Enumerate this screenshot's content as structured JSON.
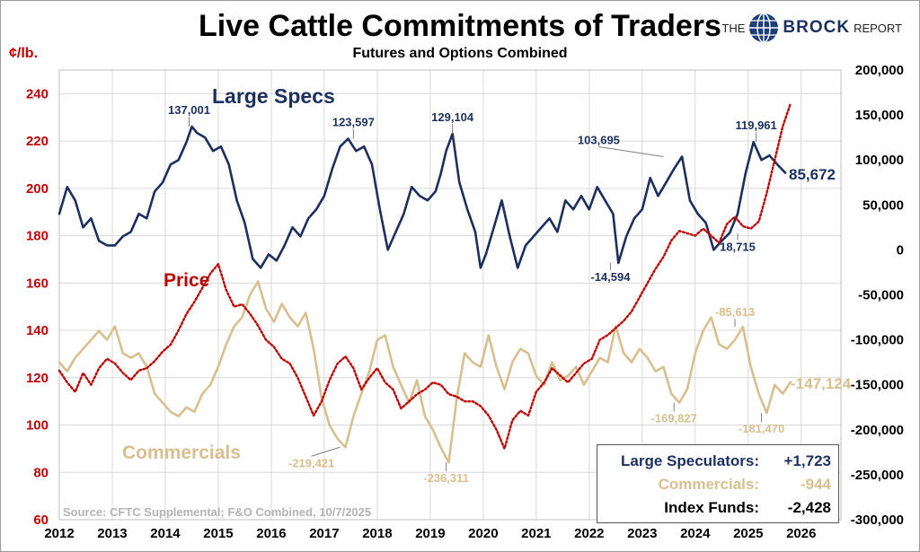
{
  "title": "Live Cattle Commitments of Traders",
  "subtitle": "Futures and Options Combined",
  "logo": {
    "the": "THE",
    "brock": "BROCK",
    "report": "REPORT"
  },
  "source": "Source: CFTC Supplemental;  F&O Combined, 10/7/2025",
  "colors": {
    "large_specs": "#1c2f5e",
    "commercials": "#d8bf8e",
    "price": "#c00000",
    "grid": "#d9d9d9"
  },
  "chart_data": {
    "type": "line",
    "title": "Live Cattle Commitments of Traders",
    "subtitle": "Futures and Options Combined",
    "x_range": [
      2012,
      2026.75
    ],
    "x_ticks": [
      "2012",
      "2013",
      "2014",
      "2015",
      "2016",
      "2017",
      "2018",
      "2019",
      "2020",
      "2021",
      "2022",
      "2023",
      "2024",
      "2025",
      "2026"
    ],
    "left_axis": {
      "label": "¢/lb.",
      "min": 60,
      "max": 250,
      "ticks": [
        60,
        80,
        100,
        120,
        140,
        160,
        180,
        200,
        220,
        240
      ]
    },
    "right_axis": {
      "min": -300000,
      "max": 200000,
      "ticks": [
        -300000,
        -250000,
        -200000,
        -150000,
        -100000,
        -50000,
        0,
        50000,
        100000,
        150000,
        200000
      ],
      "tick_labels": [
        "-300,000",
        "-250,000",
        "-200,000",
        "-150,000",
        "-100,000",
        "-50,000",
        "0",
        "50,000",
        "100,000",
        "150,000",
        "200,000"
      ]
    },
    "grid": true,
    "series": [
      {
        "name": "Large Specs",
        "axis": "right",
        "color": "#1c2f5e",
        "style": "solid",
        "label_value": "85,672",
        "x": [
          2012.0,
          2012.15,
          2012.3,
          2012.45,
          2012.6,
          2012.75,
          2012.9,
          2013.05,
          2013.2,
          2013.35,
          2013.5,
          2013.65,
          2013.8,
          2013.95,
          2014.1,
          2014.25,
          2014.4,
          2014.5,
          2014.6,
          2014.75,
          2014.9,
          2015.05,
          2015.2,
          2015.35,
          2015.5,
          2015.65,
          2015.8,
          2015.95,
          2016.1,
          2016.25,
          2016.4,
          2016.55,
          2016.7,
          2016.85,
          2017.0,
          2017.15,
          2017.3,
          2017.45,
          2017.6,
          2017.75,
          2017.9,
          2018.05,
          2018.2,
          2018.35,
          2018.5,
          2018.65,
          2018.8,
          2018.95,
          2019.1,
          2019.2,
          2019.3,
          2019.42,
          2019.55,
          2019.7,
          2019.85,
          2019.95,
          2020.05,
          2020.2,
          2020.35,
          2020.5,
          2020.65,
          2020.8,
          2020.95,
          2021.1,
          2021.25,
          2021.4,
          2021.55,
          2021.7,
          2021.85,
          2022.0,
          2022.15,
          2022.3,
          2022.45,
          2022.55,
          2022.7,
          2022.85,
          2023.0,
          2023.15,
          2023.3,
          2023.45,
          2023.6,
          2023.75,
          2023.9,
          2024.05,
          2024.2,
          2024.35,
          2024.5,
          2024.65,
          2024.8,
          2024.95,
          2025.1,
          2025.25,
          2025.4,
          2025.55,
          2025.7
        ],
        "values": [
          40000,
          70000,
          55000,
          25000,
          35000,
          10000,
          5000,
          5000,
          15000,
          20000,
          40000,
          35000,
          65000,
          75000,
          95000,
          100000,
          120000,
          137001,
          130000,
          125000,
          110000,
          115000,
          95000,
          55000,
          30000,
          -10000,
          -20000,
          -5000,
          -12000,
          5000,
          25000,
          15000,
          35000,
          45000,
          60000,
          90000,
          115000,
          123597,
          110000,
          115000,
          95000,
          45000,
          0,
          20000,
          40000,
          70000,
          60000,
          55000,
          65000,
          85000,
          110000,
          129104,
          75000,
          45000,
          20000,
          -20000,
          -5000,
          25000,
          55000,
          15000,
          -20000,
          5000,
          15000,
          25000,
          35000,
          20000,
          55000,
          45000,
          60000,
          45000,
          70000,
          55000,
          40000,
          -14594,
          15000,
          35000,
          45000,
          80000,
          60000,
          75000,
          90000,
          103695,
          55000,
          40000,
          30000,
          0,
          10000,
          18715,
          40000,
          85000,
          119961,
          100000,
          105000,
          95000,
          85672
        ]
      },
      {
        "name": "Commercials",
        "axis": "right",
        "color": "#d8bf8e",
        "style": "solid",
        "label_value": "-147,124",
        "x": [
          2012.0,
          2012.15,
          2012.3,
          2012.45,
          2012.6,
          2012.75,
          2012.9,
          2013.05,
          2013.2,
          2013.35,
          2013.5,
          2013.65,
          2013.8,
          2013.95,
          2014.1,
          2014.25,
          2014.4,
          2014.55,
          2014.7,
          2014.85,
          2015.0,
          2015.15,
          2015.3,
          2015.45,
          2015.6,
          2015.75,
          2015.9,
          2016.05,
          2016.2,
          2016.35,
          2016.5,
          2016.65,
          2016.8,
          2016.95,
          2017.1,
          2017.25,
          2017.4,
          2017.55,
          2017.7,
          2017.85,
          2018.0,
          2018.15,
          2018.3,
          2018.45,
          2018.6,
          2018.75,
          2018.9,
          2019.05,
          2019.2,
          2019.35,
          2019.5,
          2019.65,
          2019.8,
          2019.95,
          2020.1,
          2020.25,
          2020.4,
          2020.55,
          2020.7,
          2020.85,
          2021.0,
          2021.15,
          2021.3,
          2021.45,
          2021.6,
          2021.75,
          2021.9,
          2022.05,
          2022.2,
          2022.35,
          2022.5,
          2022.65,
          2022.8,
          2022.95,
          2023.1,
          2023.25,
          2023.4,
          2023.55,
          2023.7,
          2023.85,
          2024.0,
          2024.15,
          2024.3,
          2024.45,
          2024.6,
          2024.75,
          2024.9,
          2025.05,
          2025.2,
          2025.35,
          2025.5,
          2025.65,
          2025.8
        ],
        "values": [
          -125000,
          -135000,
          -120000,
          -110000,
          -100000,
          -90000,
          -100000,
          -85000,
          -115000,
          -120000,
          -115000,
          -130000,
          -160000,
          -170000,
          -180000,
          -185000,
          -175000,
          -180000,
          -160000,
          -150000,
          -130000,
          -105000,
          -85000,
          -75000,
          -50000,
          -35000,
          -65000,
          -80000,
          -60000,
          -75000,
          -85000,
          -70000,
          -110000,
          -165000,
          -195000,
          -210000,
          -219421,
          -185000,
          -160000,
          -135000,
          -100000,
          -95000,
          -130000,
          -150000,
          -170000,
          -145000,
          -185000,
          -200000,
          -220000,
          -236311,
          -165000,
          -115000,
          -125000,
          -130000,
          -95000,
          -130000,
          -155000,
          -125000,
          -110000,
          -115000,
          -140000,
          -150000,
          -125000,
          -145000,
          -140000,
          -130000,
          -150000,
          -135000,
          -120000,
          -125000,
          -85000,
          -115000,
          -125000,
          -110000,
          -120000,
          -135000,
          -130000,
          -160000,
          -169827,
          -155000,
          -115000,
          -90000,
          -75000,
          -105000,
          -110000,
          -100000,
          -85613,
          -130000,
          -160000,
          -181470,
          -150000,
          -160000,
          -147124
        ]
      },
      {
        "name": "Price",
        "axis": "left",
        "color": "#c00000",
        "style": "dotted",
        "x": [
          2012.0,
          2012.15,
          2012.3,
          2012.45,
          2012.6,
          2012.75,
          2012.9,
          2013.05,
          2013.2,
          2013.35,
          2013.5,
          2013.65,
          2013.8,
          2013.95,
          2014.1,
          2014.25,
          2014.4,
          2014.55,
          2014.7,
          2014.85,
          2015.0,
          2015.15,
          2015.3,
          2015.45,
          2015.6,
          2015.75,
          2015.9,
          2016.05,
          2016.2,
          2016.35,
          2016.5,
          2016.65,
          2016.8,
          2016.95,
          2017.1,
          2017.25,
          2017.4,
          2017.55,
          2017.7,
          2017.85,
          2018.0,
          2018.15,
          2018.3,
          2018.45,
          2018.6,
          2018.75,
          2018.9,
          2019.05,
          2019.2,
          2019.35,
          2019.5,
          2019.65,
          2019.8,
          2019.95,
          2020.1,
          2020.25,
          2020.4,
          2020.55,
          2020.7,
          2020.85,
          2021.0,
          2021.15,
          2021.3,
          2021.45,
          2021.6,
          2021.75,
          2021.9,
          2022.05,
          2022.2,
          2022.35,
          2022.5,
          2022.65,
          2022.8,
          2022.95,
          2023.1,
          2023.25,
          2023.4,
          2023.55,
          2023.7,
          2023.85,
          2024.0,
          2024.15,
          2024.3,
          2024.45,
          2024.6,
          2024.75,
          2024.9,
          2025.05,
          2025.2,
          2025.35,
          2025.5,
          2025.65,
          2025.8
        ],
        "values": [
          123,
          118,
          114,
          122,
          117,
          124,
          128,
          126,
          122,
          119,
          123,
          124,
          127,
          131,
          134,
          140,
          147,
          152,
          158,
          164,
          168,
          157,
          150,
          151,
          147,
          142,
          136,
          133,
          128,
          126,
          120,
          112,
          104,
          110,
          119,
          126,
          129,
          124,
          115,
          120,
          124,
          118,
          115,
          107,
          110,
          113,
          115,
          118,
          117,
          113,
          112,
          110,
          110,
          108,
          104,
          98,
          90,
          102,
          106,
          104,
          114,
          118,
          124,
          121,
          118,
          122,
          126,
          128,
          136,
          138,
          141,
          144,
          148,
          154,
          160,
          166,
          171,
          178,
          182,
          181,
          180,
          183,
          180,
          177,
          185,
          188,
          184,
          183,
          186,
          198,
          212,
          226,
          236
        ]
      }
    ],
    "annotations": [
      {
        "series": "Large Specs",
        "x": 2014.45,
        "value": 137001,
        "text": "137,001"
      },
      {
        "series": "Large Specs",
        "x": 2017.55,
        "value": 123597,
        "text": "123,597"
      },
      {
        "series": "Large Specs",
        "x": 2019.42,
        "value": 129104,
        "text": "129,104"
      },
      {
        "series": "Large Specs",
        "x": 2023.4,
        "value": 103695,
        "text": "103,695"
      },
      {
        "series": "Large Specs",
        "x": 2022.4,
        "value": -14594,
        "text": "-14,594"
      },
      {
        "series": "Large Specs",
        "x": 2025.15,
        "value": 119961,
        "text": "119,961"
      },
      {
        "series": "Large Specs",
        "x": 2024.8,
        "value": 18715,
        "text": "18,715"
      },
      {
        "series": "Commercials",
        "x": 2017.3,
        "value": -219421,
        "text": "-219,421"
      },
      {
        "series": "Commercials",
        "x": 2019.3,
        "value": -236311,
        "text": "-236,311"
      },
      {
        "series": "Commercials",
        "x": 2023.6,
        "value": -169827,
        "text": "-169,827"
      },
      {
        "series": "Commercials",
        "x": 2025.25,
        "value": -181470,
        "text": "-181,470"
      },
      {
        "series": "Commercials",
        "x": 2024.75,
        "value": -85613,
        "text": "-85,613"
      }
    ]
  },
  "weekly_change": {
    "rows": [
      {
        "label": "Large Speculators:",
        "value": "+1,723",
        "color": "#1c2f5e"
      },
      {
        "label": "Commercials:",
        "value": "-944",
        "color": "#d8bf8e"
      },
      {
        "label": "Index Funds:",
        "value": "-2,428",
        "color": "#000000"
      }
    ]
  }
}
